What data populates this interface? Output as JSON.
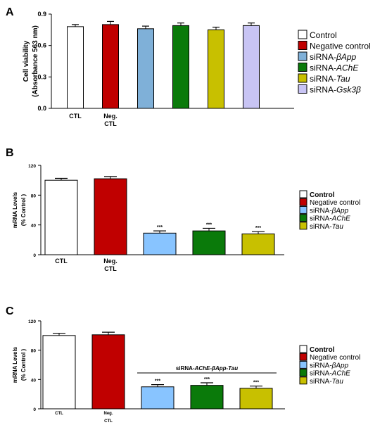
{
  "chart_data": [
    {
      "panel": "A",
      "type": "bar",
      "ylabel_line1": "Cell viability",
      "ylabel_line2": "(Absorbance 563 nm)",
      "ylim": [
        0,
        0.9
      ],
      "yticks": [
        "0.0",
        "0.3",
        "0.6",
        "0.9"
      ],
      "ytick_values": [
        0,
        0.3,
        0.6,
        0.9
      ],
      "categories": [
        [
          "CTL"
        ],
        [
          "Neg.",
          "CTL"
        ],
        [
          ""
        ],
        [
          ""
        ],
        [
          ""
        ],
        [
          ""
        ]
      ],
      "values": [
        0.78,
        0.8,
        0.76,
        0.79,
        0.75,
        0.79
      ],
      "errors": [
        0.02,
        0.03,
        0.025,
        0.025,
        0.025,
        0.025
      ],
      "colors": [
        "#ffffff",
        "#c00000",
        "#7fb0d8",
        "#0a7a0a",
        "#c8c000",
        "#c8c4f4"
      ],
      "significance": [
        "",
        "",
        "",
        "",
        "",
        ""
      ],
      "legend": [
        {
          "plain": "Control",
          "ital": "",
          "color": "#ffffff"
        },
        {
          "plain": "Negative control",
          "ital": "",
          "color": "#c00000"
        },
        {
          "plain": "siRNA-",
          "ital": "βApp",
          "color": "#7fb0d8"
        },
        {
          "plain": "siRNA-",
          "ital": "AChE",
          "color": "#0a7a0a"
        },
        {
          "plain": "siRNA-",
          "ital": "Tau",
          "color": "#c8c000"
        },
        {
          "plain": "siRNA-",
          "ital": "Gsk3β",
          "color": "#c8c4f4"
        }
      ]
    },
    {
      "panel": "B",
      "type": "bar",
      "ylabel_line1": "mRNA Levels",
      "ylabel_line2": "(% Control )",
      "ylim": [
        0,
        120
      ],
      "yticks": [
        "0",
        "40",
        "80",
        "120"
      ],
      "ytick_values": [
        0,
        40,
        80,
        120
      ],
      "categories": [
        [
          "CTL"
        ],
        [
          "Neg.",
          "CTL"
        ],
        [
          ""
        ],
        [
          ""
        ],
        [
          ""
        ]
      ],
      "values": [
        100,
        102,
        29,
        32,
        28
      ],
      "errors": [
        2.5,
        3,
        3,
        3.5,
        3
      ],
      "colors": [
        "#ffffff",
        "#c00000",
        "#88c4ff",
        "#0a7a0a",
        "#c8c000"
      ],
      "significance": [
        "",
        "",
        "***",
        "***",
        "***"
      ],
      "legend": [
        {
          "plain": "Control",
          "ital": "",
          "color": "#ffffff",
          "bold": true
        },
        {
          "plain": "Negative control",
          "ital": "",
          "color": "#c00000"
        },
        {
          "plain": "siRNA-",
          "ital": "βApp",
          "color": "#88c4ff"
        },
        {
          "plain": "siRNA-",
          "ital": "AChE",
          "color": "#0a7a0a"
        },
        {
          "plain": "siRNA-",
          "ital": "Tau",
          "color": "#c8c000"
        }
      ]
    },
    {
      "panel": "C",
      "type": "bar",
      "ylabel_line1": "mRNA Levels",
      "ylabel_line2": "(% Control )",
      "ylim": [
        0,
        120
      ],
      "yticks": [
        "0",
        "40",
        "80",
        "120"
      ],
      "ytick_values": [
        0,
        40,
        80,
        120
      ],
      "categories": [
        [
          "CTL"
        ],
        [
          "Neg.",
          "CTL"
        ],
        [
          ""
        ],
        [
          ""
        ],
        [
          ""
        ]
      ],
      "values": [
        100,
        101,
        30,
        32,
        28
      ],
      "errors": [
        3,
        3.5,
        3,
        3.5,
        3
      ],
      "colors": [
        "#ffffff",
        "#c00000",
        "#88c4ff",
        "#0a7a0a",
        "#c8c000"
      ],
      "significance": [
        "",
        "",
        "***",
        "***",
        "***"
      ],
      "group_label": {
        "plain": "siRNA-",
        "ital": "AChE-βApp-Tau"
      },
      "legend": [
        {
          "plain": "Control",
          "ital": "",
          "color": "#ffffff",
          "bold": true
        },
        {
          "plain": "Negative control",
          "ital": "",
          "color": "#c00000"
        },
        {
          "plain": "siRNA-",
          "ital": "βApp",
          "color": "#88c4ff"
        },
        {
          "plain": "siRNA-",
          "ital": "AChE",
          "color": "#0a7a0a"
        },
        {
          "plain": "siRNA-",
          "ital": "Tau",
          "color": "#c8c000"
        }
      ]
    }
  ]
}
